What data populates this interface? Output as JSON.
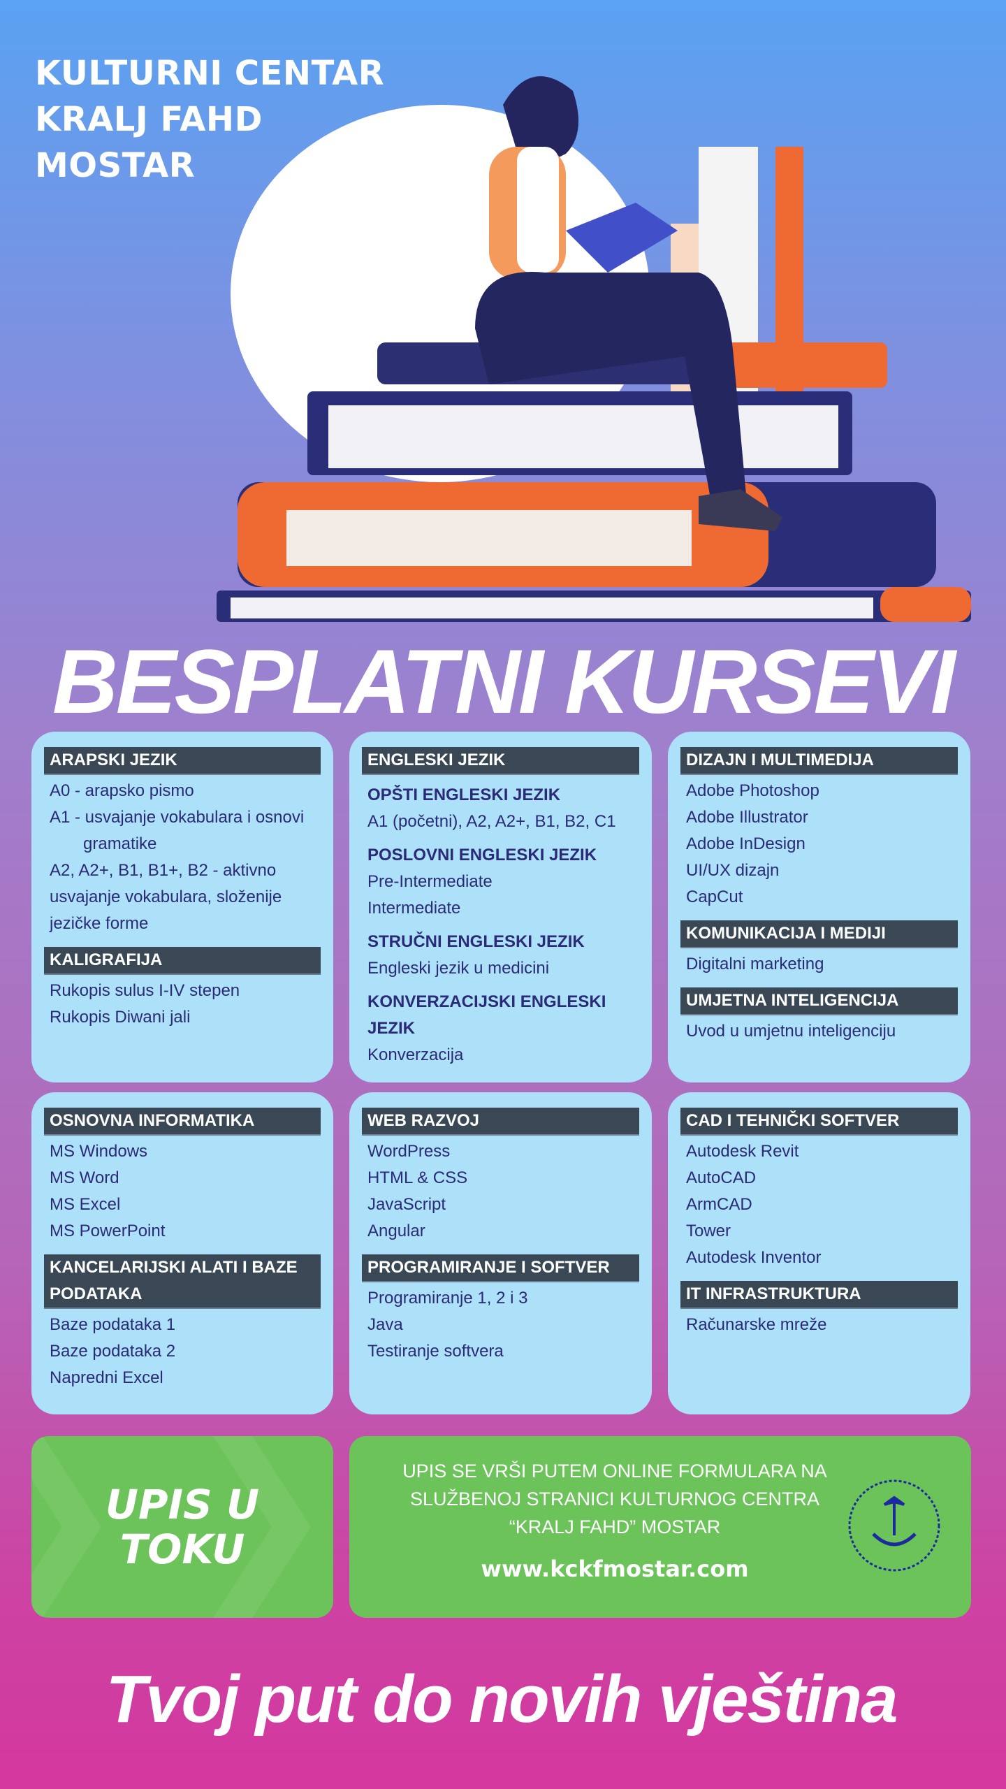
{
  "brand": {
    "lines": [
      "KULTURNI CENTAR",
      "KRALJ FAHD",
      "MOSTAR"
    ]
  },
  "hero_title": "BESPLATNI KURSEVI",
  "colors": {
    "card": "#ade1f9",
    "header_bar": "#3a4856",
    "text": "#2a2a78",
    "green": "#6cc35a",
    "accent_orange": "#f06a33",
    "navy": "#2b2b7a"
  },
  "cards": [
    {
      "sections": [
        {
          "title": "ARAPSKI JEZIK",
          "items": [
            {
              "text": "A0 - arapsko pismo"
            },
            {
              "text": "A1 - usvajanje vokabulara i osnovi gramatike",
              "hang": true
            },
            {
              "text": "A2, A2+, B1, B1+, B2 - aktivno usvajanje vokabulara, složenije jezičke forme"
            }
          ]
        },
        {
          "title": "KALIGRAFIJA",
          "items": [
            {
              "text": "Rukopis sulus I-IV stepen"
            },
            {
              "text": "Rukopis Diwani jali"
            }
          ]
        }
      ]
    },
    {
      "sections": [
        {
          "title": "ENGLESKI JEZIK",
          "groups": [
            {
              "subtitle": "OPŠTI ENGLESKI JEZIK",
              "items": [
                "A1 (početni), A2, A2+, B1, B2, C1"
              ]
            },
            {
              "subtitle": "POSLOVNI ENGLESKI JEZIK",
              "items": [
                "Pre-Intermediate",
                "Intermediate"
              ]
            },
            {
              "subtitle": "STRUČNI ENGLESKI JEZIK",
              "items": [
                "Engleski jezik u medicini"
              ]
            },
            {
              "subtitle": "KONVERZACIJSKI ENGLESKI JEZIK",
              "items": [
                "Konverzacija"
              ]
            }
          ]
        }
      ]
    },
    {
      "sections": [
        {
          "title": "DIZAJN I MULTIMEDIJA",
          "items": [
            {
              "text": "Adobe Photoshop"
            },
            {
              "text": "Adobe Illustrator"
            },
            {
              "text": "Adobe InDesign"
            },
            {
              "text": "UI/UX dizajn"
            },
            {
              "text": "CapCut"
            }
          ]
        },
        {
          "title": "KOMUNIKACIJA I MEDIJI",
          "items": [
            {
              "text": "Digitalni marketing"
            }
          ]
        },
        {
          "title": "UMJETNA INTELIGENCIJA",
          "items": [
            {
              "text": "Uvod u umjetnu inteligenciju"
            }
          ]
        }
      ]
    },
    {
      "sections": [
        {
          "title": "OSNOVNA INFORMATIKA",
          "items": [
            {
              "text": "MS Windows"
            },
            {
              "text": "MS Word"
            },
            {
              "text": "MS Excel"
            },
            {
              "text": "MS PowerPoint"
            }
          ]
        },
        {
          "title": "KANCELARIJSKI ALATI I BAZE PODATAKA",
          "items": [
            {
              "text": "Baze podataka 1"
            },
            {
              "text": "Baze podataka 2"
            },
            {
              "text": "Napredni Excel"
            }
          ]
        }
      ]
    },
    {
      "sections": [
        {
          "title": "WEB RAZVOJ",
          "items": [
            {
              "text": "WordPress"
            },
            {
              "text": "HTML & CSS"
            },
            {
              "text": "JavaScript"
            },
            {
              "text": "Angular"
            }
          ]
        },
        {
          "title": "PROGRAMIRANJE I SOFTVER",
          "items": [
            {
              "text": "Programiranje 1, 2 i 3"
            },
            {
              "text": "Java"
            },
            {
              "text": "Testiranje softvera"
            }
          ]
        }
      ]
    },
    {
      "sections": [
        {
          "title": "CAD I TEHNIČKI SOFTVER",
          "items": [
            {
              "text": "Autodesk Revit"
            },
            {
              "text": "AutoCAD"
            },
            {
              "text": "ArmCAD"
            },
            {
              "text": "Tower"
            },
            {
              "text": "Autodesk Inventor"
            }
          ]
        },
        {
          "title": "IT INFRASTRUKTURA",
          "items": [
            {
              "text": "Računarske mreže"
            }
          ]
        }
      ]
    }
  ],
  "enroll": {
    "badge": "UPIS U TOKU",
    "info_lines": [
      "UPIS SE VRŠI PUTEM ONLINE FORMULARA NA",
      "SLUŽBENOJ STRANICI KULTURNOG CENTRA",
      "“KRALJ FAHD” MOSTAR"
    ],
    "url": "www.kckfmostar.com",
    "seal_icon": "saudi-emblem-seal"
  },
  "tagline": "Tvoj put do novih vještina"
}
